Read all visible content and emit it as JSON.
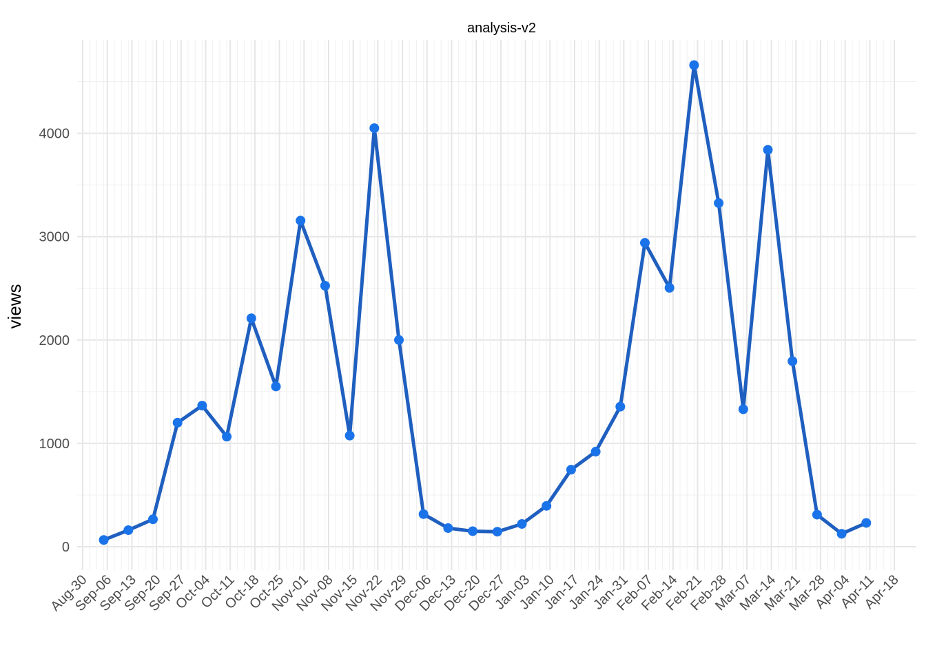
{
  "chart_data": {
    "type": "line",
    "title": "analysis-v2",
    "xlabel": "",
    "ylabel": "views",
    "ylim": [
      0,
      4700
    ],
    "y_ticks": [
      0,
      1000,
      2000,
      3000,
      4000
    ],
    "x_tick_labels": [
      "Aug-30",
      "Sep-06",
      "Sep-13",
      "Sep-20",
      "Sep-27",
      "Oct-04",
      "Oct-11",
      "Oct-18",
      "Oct-25",
      "Nov-01",
      "Nov-08",
      "Nov-15",
      "Nov-22",
      "Nov-29",
      "Dec-06",
      "Dec-13",
      "Dec-20",
      "Dec-27",
      "Jan-03",
      "Jan-10",
      "Jan-17",
      "Jan-24",
      "Jan-31",
      "Feb-07",
      "Feb-14",
      "Feb-21",
      "Feb-28",
      "Mar-07",
      "Mar-14",
      "Mar-21",
      "Mar-28",
      "Apr-04",
      "Apr-11",
      "Apr-18"
    ],
    "grid": true,
    "line_color": "#1f5fbf",
    "point_color": "#1a73e8",
    "series": [
      {
        "x": [
          "Sep-05",
          "Sep-12",
          "Sep-19",
          "Sep-26",
          "Oct-03",
          "Oct-10",
          "Oct-17",
          "Oct-24",
          "Oct-31",
          "Nov-07",
          "Nov-14",
          "Nov-21",
          "Nov-28",
          "Dec-05",
          "Dec-12",
          "Dec-19",
          "Dec-26",
          "Jan-02",
          "Jan-09",
          "Jan-16",
          "Jan-23",
          "Jan-30",
          "Feb-06",
          "Feb-13",
          "Feb-20",
          "Feb-27",
          "Mar-06",
          "Mar-13",
          "Mar-20",
          "Mar-27",
          "Apr-03",
          "Apr-10"
        ],
        "values": [
          65,
          160,
          265,
          1200,
          1365,
          1065,
          2210,
          1550,
          3155,
          2525,
          1075,
          4050,
          2000,
          315,
          180,
          150,
          145,
          220,
          395,
          745,
          920,
          1355,
          2940,
          2505,
          4660,
          3325,
          1330,
          3840,
          1795,
          310,
          125,
          230
        ]
      }
    ]
  }
}
